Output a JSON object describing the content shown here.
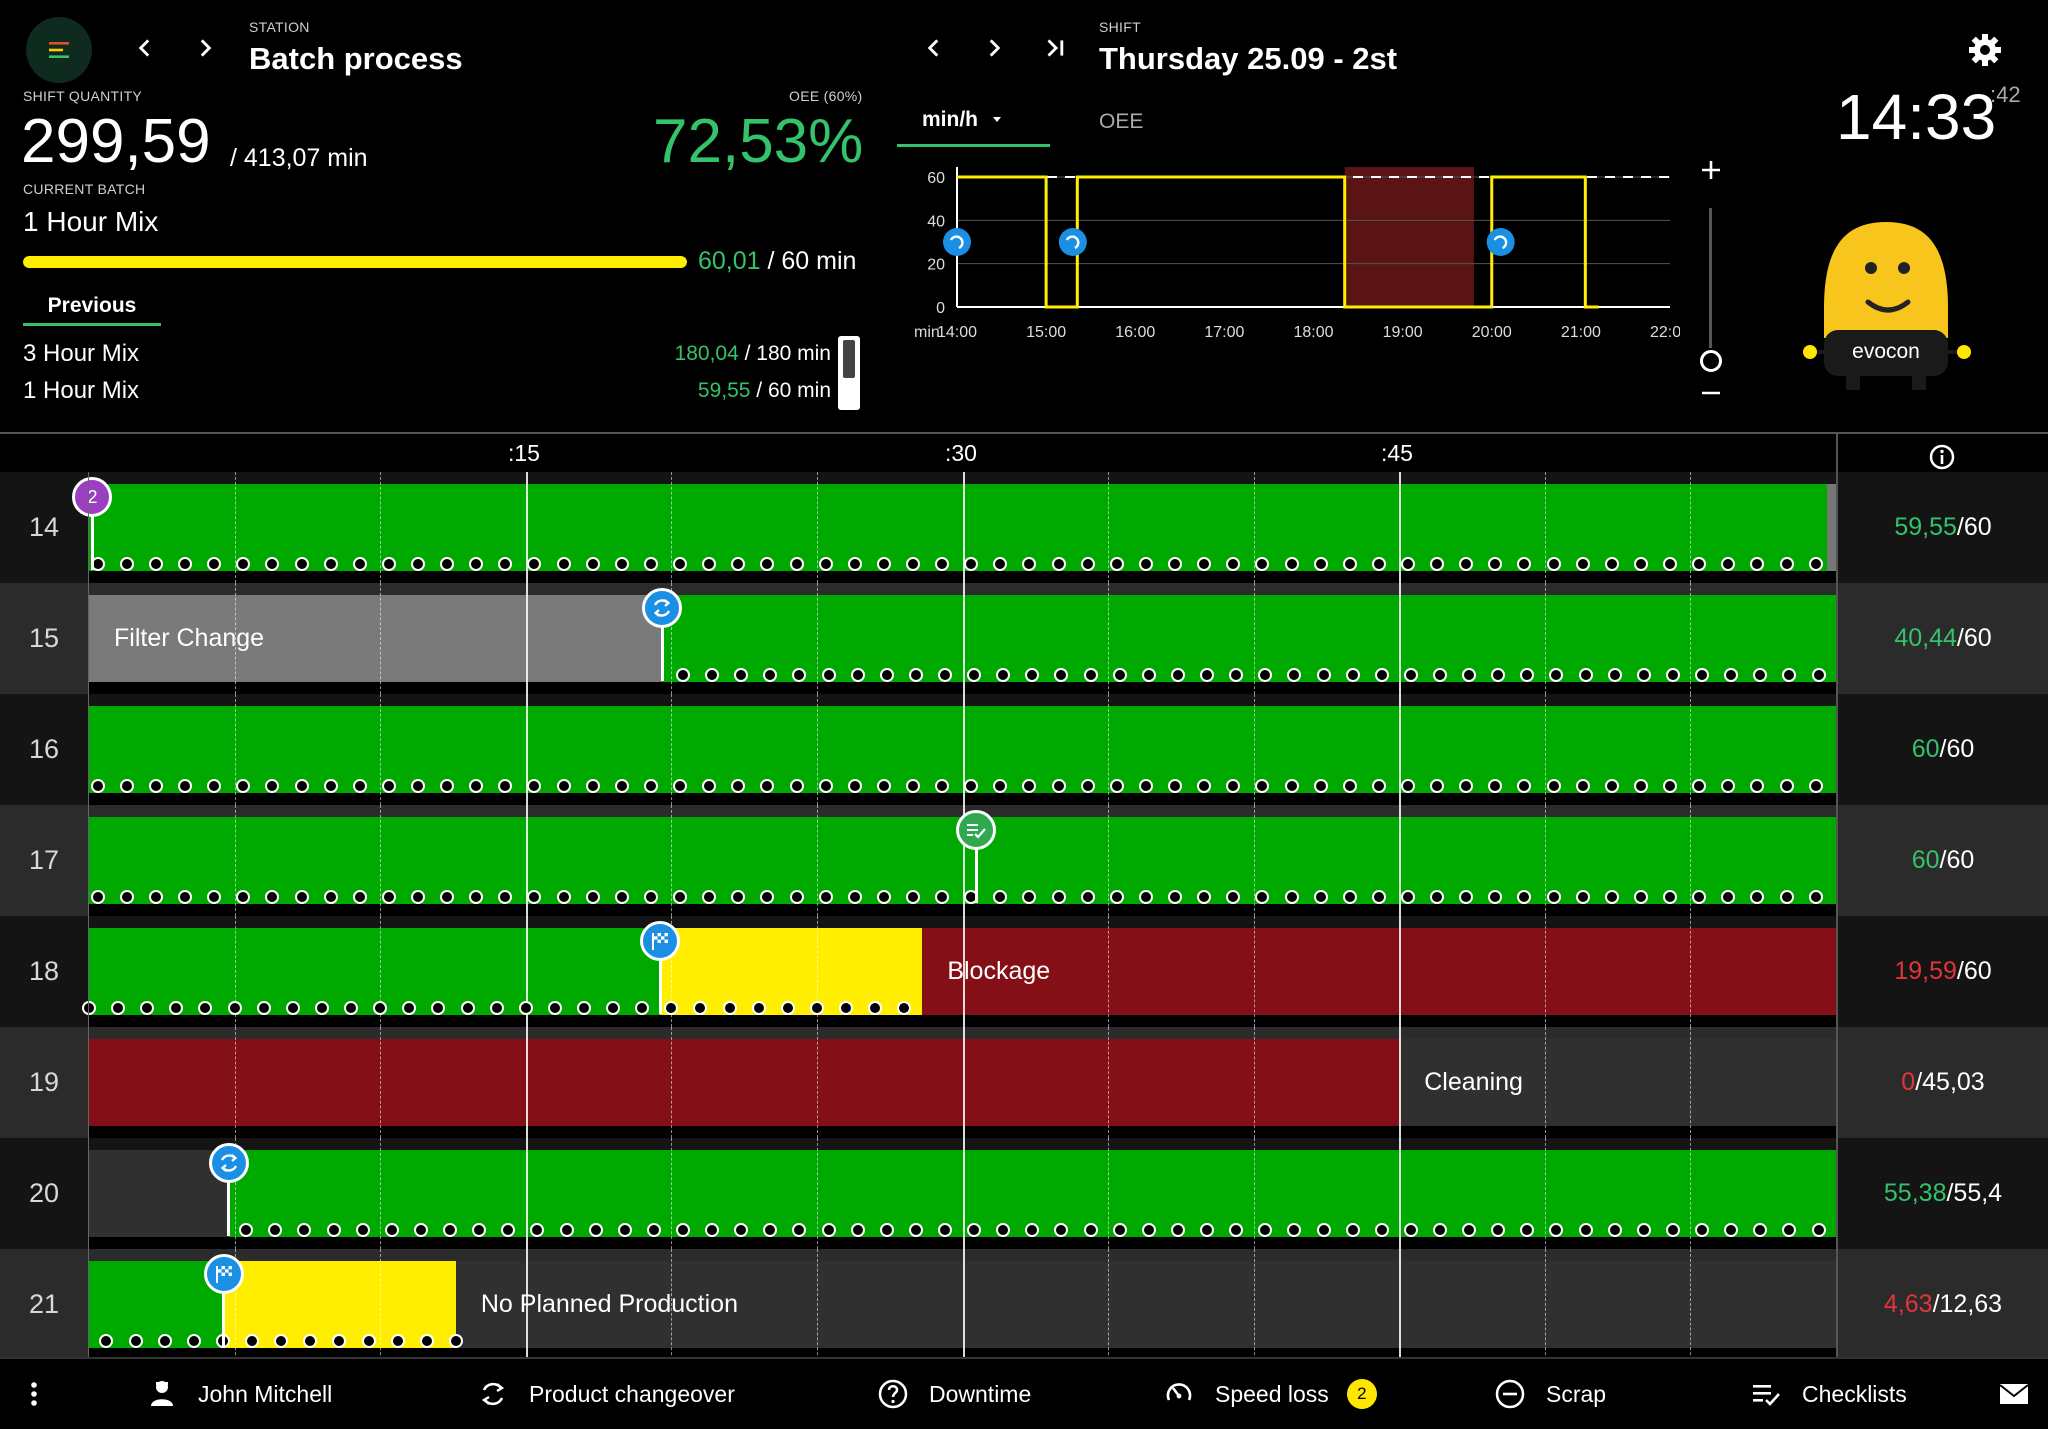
{
  "header": {
    "station_label": "STATION",
    "station_name": "Batch process",
    "shift_label": "SHIFT",
    "shift_name": "Thursday 25.09 - 2st",
    "shift_quantity_label": "SHIFT QUANTITY",
    "shift_quantity_value": "299,59",
    "shift_quantity_target": "/ 413,07 min",
    "oee_label": "OEE (60%)",
    "oee_value": "72,53%",
    "current_batch_label": "CURRENT BATCH",
    "current_batch_name": "1 Hour Mix",
    "current_batch_done": "60,01",
    "current_batch_target": "/ 60 min",
    "current_batch_progress": 1.0,
    "previous_tab_label": "Previous",
    "previous_batches": [
      {
        "name": "3 Hour Mix",
        "done": "180,04",
        "target": "/ 180 min"
      },
      {
        "name": "1 Hour Mix",
        "done": "59,55",
        "target": "/ 60 min"
      }
    ],
    "clock_main": "14:33",
    "clock_seconds": ":42",
    "mascot_brand": "evocon",
    "accent_color": "#34c26a"
  },
  "mini_chart_tabs": {
    "active": "min/h",
    "inactive": "OEE"
  },
  "chart_data": {
    "type": "line",
    "ylabel": "min",
    "yticks": [
      "60",
      "40",
      "20",
      "0"
    ],
    "ylim": [
      0,
      60
    ],
    "xlim": [
      14,
      22
    ],
    "xticks": [
      "14:00",
      "15:00",
      "16:00",
      "17:00",
      "18:00",
      "19:00",
      "20:00",
      "21:00",
      "22:00"
    ],
    "series": [
      {
        "values": [
          [
            14,
            60
          ],
          [
            15.0,
            60
          ],
          [
            15.0,
            0
          ],
          [
            15.35,
            0
          ],
          [
            15.35,
            60
          ],
          [
            18.35,
            60
          ],
          [
            18.35,
            0
          ],
          [
            20.0,
            0
          ],
          [
            20.0,
            60
          ],
          [
            21.05,
            60
          ],
          [
            21.05,
            0
          ],
          [
            21.2,
            0
          ]
        ],
        "color": "#ffee00"
      }
    ],
    "target_line": 60,
    "downtime_band": [
      18.35,
      19.8
    ],
    "changeover_markers": [
      14.0,
      15.3,
      20.1
    ]
  },
  "timeline": {
    "ticks": [
      ":15",
      ":30",
      ":45"
    ],
    "rows": [
      {
        "hour": "14",
        "actual": "59,55",
        "target": "/60",
        "actual_color": "green",
        "segments": [
          {
            "s": 0,
            "e": 0.995,
            "color": "#00a900"
          },
          {
            "s": 0.995,
            "e": 1,
            "color": "#777777"
          }
        ],
        "dots": [
          0.005,
          1
        ],
        "marker": {
          "type": "number",
          "pos": 0.002,
          "label": "2"
        }
      },
      {
        "hour": "15",
        "actual": "40,44",
        "target": "/60",
        "actual_color": "green",
        "segments": [
          {
            "s": 0,
            "e": 0.328,
            "color": "#7a7a7a",
            "label": "Filter Change"
          },
          {
            "s": 0.328,
            "e": 1,
            "color": "#00a900"
          }
        ],
        "dots": [
          0.34,
          1
        ],
        "marker": {
          "type": "changeover",
          "pos": 0.328
        }
      },
      {
        "hour": "16",
        "actual": "60",
        "target": "/60",
        "actual_color": "green",
        "segments": [
          {
            "s": 0,
            "e": 1,
            "color": "#00a900"
          }
        ],
        "dots": [
          0.005,
          1
        ]
      },
      {
        "hour": "17",
        "actual": "60",
        "target": "/60",
        "actual_color": "green",
        "segments": [
          {
            "s": 0,
            "e": 1,
            "color": "#00a900"
          }
        ],
        "dots": [
          0.005,
          1
        ],
        "marker": {
          "type": "checklist",
          "pos": 0.508
        }
      },
      {
        "hour": "18",
        "actual": "19,59",
        "target": "/60",
        "actual_color": "red",
        "segments": [
          {
            "s": 0,
            "e": 0.327,
            "color": "#00a900"
          },
          {
            "s": 0.327,
            "e": 0.477,
            "color": "#ffee00"
          },
          {
            "s": 0.477,
            "e": 1,
            "color": "#850f17",
            "label": "Blockage"
          }
        ],
        "dots": [
          0.0,
          0.477
        ],
        "marker": {
          "type": "flag",
          "pos": 0.327
        }
      },
      {
        "hour": "19",
        "actual": "0",
        "target": "/45,03",
        "actual_color": "red",
        "segments": [
          {
            "s": 0,
            "e": 0.75,
            "color": "#850f17"
          },
          {
            "s": 0.75,
            "e": 1,
            "color": "#303030",
            "label": "Cleaning"
          }
        ],
        "dots": null
      },
      {
        "hour": "20",
        "actual": "55,38",
        "target": "/55,4",
        "actual_color": "green",
        "segments": [
          {
            "s": 0,
            "e": 0.08,
            "color": "#303030"
          },
          {
            "s": 0.08,
            "e": 1,
            "color": "#00a900"
          }
        ],
        "dots": [
          0.09,
          1
        ],
        "marker": {
          "type": "changeover",
          "pos": 0.08
        }
      },
      {
        "hour": "21",
        "actual": "4,63",
        "target": "/12,63",
        "actual_color": "red",
        "segments": [
          {
            "s": 0,
            "e": 0.077,
            "color": "#00a900"
          },
          {
            "s": 0.077,
            "e": 0.21,
            "color": "#ffee00"
          },
          {
            "s": 0.21,
            "e": 1,
            "color": "#303030",
            "label": "No Planned Production"
          }
        ],
        "dots": [
          0.01,
          0.21
        ],
        "marker": {
          "type": "flag",
          "pos": 0.077
        }
      }
    ]
  },
  "footer": {
    "operator": "John Mitchell",
    "changeover": "Product changeover",
    "downtime": "Downtime",
    "speed_loss": "Speed loss",
    "speed_loss_count": "2",
    "scrap": "Scrap",
    "checklists": "Checklists"
  }
}
